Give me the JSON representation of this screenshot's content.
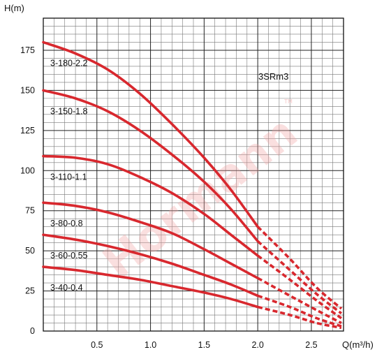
{
  "watermark": "Hormann",
  "watermark_mark": "TM",
  "chart_data": {
    "type": "line",
    "title": "3SRm3",
    "xlabel": "Q(m³/h)",
    "ylabel": "H(m)",
    "xlim": [
      0,
      2.8
    ],
    "ylim": [
      0,
      195
    ],
    "x_ticks": [
      0.5,
      1.0,
      1.5,
      2.0,
      2.5
    ],
    "x_tick_labels": [
      "0.5",
      "1.0",
      "1.5",
      "2.0",
      "2.5"
    ],
    "y_ticks": [
      0,
      25,
      50,
      75,
      100,
      125,
      150,
      175
    ],
    "y_tick_labels": [
      "0",
      "25",
      "50",
      "75",
      "100",
      "125",
      "150",
      "175"
    ],
    "grid": true,
    "line_color": "#d8282e",
    "series": [
      {
        "name": "3-180-2.2",
        "solid": {
          "x": [
            0,
            0.3,
            0.6,
            0.9,
            1.2,
            1.5,
            1.75,
            2.0
          ],
          "y": [
            180,
            173,
            163,
            148,
            129,
            108,
            88,
            65
          ]
        },
        "dashed": {
          "x": [
            2.0,
            2.3,
            2.55,
            2.78
          ],
          "y": [
            65,
            45,
            27,
            14
          ]
        }
      },
      {
        "name": "3-150-1.8",
        "solid": {
          "x": [
            0,
            0.3,
            0.6,
            0.9,
            1.2,
            1.5,
            1.75,
            2.0
          ],
          "y": [
            150,
            145,
            137,
            125,
            110,
            93,
            76,
            56
          ]
        },
        "dashed": {
          "x": [
            2.0,
            2.3,
            2.55,
            2.78
          ],
          "y": [
            56,
            38,
            23,
            11
          ]
        }
      },
      {
        "name": "3-110-1.1",
        "solid": {
          "x": [
            0,
            0.3,
            0.6,
            0.9,
            1.2,
            1.5,
            1.75,
            2.0
          ],
          "y": [
            109,
            108,
            104,
            96,
            86,
            73,
            60,
            47
          ]
        },
        "dashed": {
          "x": [
            2.0,
            2.3,
            2.55,
            2.78
          ],
          "y": [
            47,
            32,
            19,
            8
          ]
        }
      },
      {
        "name": "3-80-0.8",
        "solid": {
          "x": [
            0,
            0.3,
            0.6,
            0.9,
            1.2,
            1.5,
            1.75,
            2.0
          ],
          "y": [
            80,
            78,
            74,
            68,
            61,
            51,
            42,
            33
          ]
        },
        "dashed": {
          "x": [
            2.0,
            2.3,
            2.55,
            2.78
          ],
          "y": [
            33,
            22,
            13,
            5
          ]
        }
      },
      {
        "name": "3-60-0.55",
        "solid": {
          "x": [
            0,
            0.3,
            0.6,
            0.9,
            1.2,
            1.5,
            1.75,
            2.0
          ],
          "y": [
            60,
            57,
            53,
            48,
            42,
            35,
            29,
            22
          ]
        },
        "dashed": {
          "x": [
            2.0,
            2.3,
            2.55,
            2.78
          ],
          "y": [
            22,
            15,
            8,
            3
          ]
        }
      },
      {
        "name": "3-40-0.4",
        "solid": {
          "x": [
            0,
            0.3,
            0.6,
            0.9,
            1.2,
            1.5,
            1.75,
            2.0
          ],
          "y": [
            40,
            38,
            35,
            32,
            28,
            24,
            20,
            15
          ]
        },
        "dashed": {
          "x": [
            2.0,
            2.3,
            2.55,
            2.78
          ],
          "y": [
            15,
            10,
            5,
            2
          ]
        }
      }
    ]
  }
}
